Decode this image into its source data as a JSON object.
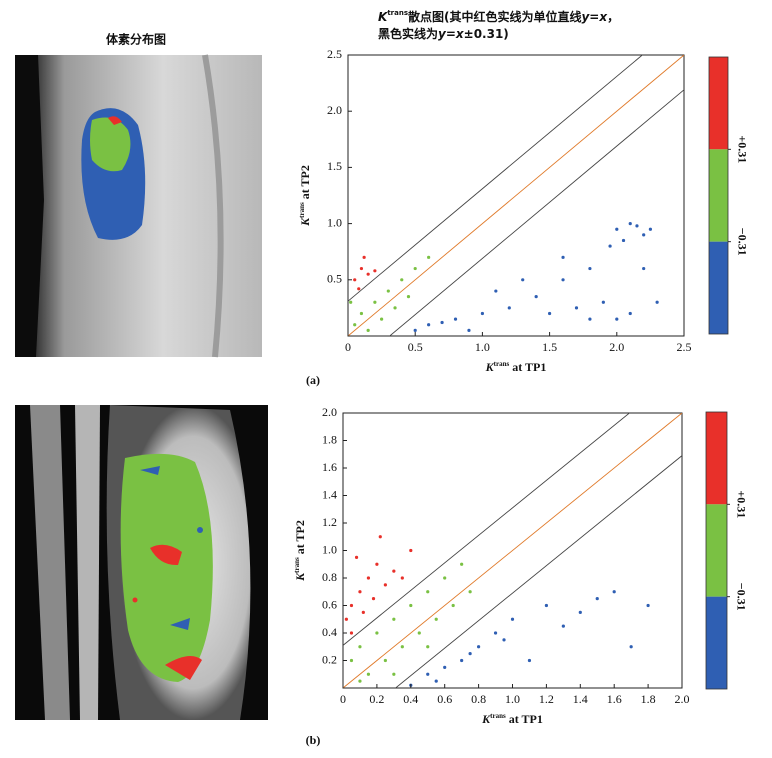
{
  "figure": {
    "left_title": "体素分布图",
    "right_title_lines": [
      [
        {
          "text": "K",
          "italic": true
        },
        {
          "text": "trans",
          "sup": true
        },
        {
          "text": "散点图(其中红色实线为单位直线"
        },
        {
          "text": "y=x",
          "italic": true
        },
        {
          "text": "，"
        }
      ],
      [
        {
          "text": "黑色实线为"
        },
        {
          "text": "y=x",
          "italic": true
        },
        {
          "text": "±0.31)"
        }
      ]
    ]
  },
  "chart_data": [
    {
      "type": "scatter",
      "panel_label": "(a)",
      "x_label": [
        {
          "text": "K",
          "italic": true
        },
        {
          "text": "trans",
          "sup": true
        },
        {
          "text": " at TP1"
        }
      ],
      "y_label": [
        {
          "text": "K",
          "italic": true
        },
        {
          "text": "trans",
          "sup": true
        },
        {
          "text": " at TP2"
        }
      ],
      "xlim": [
        0,
        2.5
      ],
      "ylim": [
        0,
        2.5
      ],
      "xticks": [
        0,
        0.5,
        {
          "value": 1,
          "label": "1.0"
        },
        1.5,
        {
          "value": 2,
          "label": "2.0"
        },
        2.5
      ],
      "yticks": [
        0.5,
        {
          "value": 1,
          "label": "1.0"
        },
        1.5,
        {
          "value": 2,
          "label": "2.0"
        },
        2.5
      ],
      "reference_lines": [
        {
          "intercept": 0,
          "color": "#e07a2a"
        },
        {
          "intercept": 0.31,
          "color": "#444444"
        },
        {
          "intercept": -0.31,
          "color": "#444444"
        }
      ],
      "series": [
        {
          "color": "#e8302a",
          "x": [
            0.05,
            0.1,
            0.15,
            0.08,
            0.2,
            0.12
          ],
          "y": [
            0.5,
            0.6,
            0.55,
            0.42,
            0.58,
            0.7
          ]
        },
        {
          "color": "#7ac143",
          "x": [
            0.05,
            0.1,
            0.2,
            0.3,
            0.4,
            0.5,
            0.6,
            0.15,
            0.25,
            0.35,
            0.02,
            0.45
          ],
          "y": [
            0.1,
            0.2,
            0.3,
            0.4,
            0.5,
            0.6,
            0.7,
            0.05,
            0.15,
            0.25,
            0.3,
            0.35
          ]
        },
        {
          "color": "#2f5fb3",
          "x": [
            2.0,
            2.1,
            2.2,
            2.05,
            2.15,
            1.95,
            2.25,
            1.8,
            1.6,
            1.4,
            1.2,
            1.0,
            0.8,
            0.6,
            1.5,
            1.7,
            1.9,
            2.1,
            2.3,
            1.3,
            1.1,
            0.9,
            1.6,
            1.8,
            2.0,
            2.2,
            0.5,
            0.7
          ],
          "y": [
            0.95,
            1.0,
            0.9,
            0.85,
            0.98,
            0.8,
            0.95,
            0.6,
            0.5,
            0.35,
            0.25,
            0.2,
            0.15,
            0.1,
            0.2,
            0.25,
            0.3,
            0.2,
            0.3,
            0.5,
            0.4,
            0.05,
            0.7,
            0.15,
            0.15,
            0.6,
            0.05,
            0.12
          ]
        }
      ],
      "colorbar": {
        "colors": [
          "#e8302a",
          "#7ac143",
          "#2f5fb3"
        ],
        "ticks": [
          {
            "value": 0.31,
            "label": "+0.31"
          },
          {
            "value": -0.31,
            "label": "−0.31"
          }
        ]
      }
    },
    {
      "type": "scatter",
      "panel_label": "(b)",
      "x_label": [
        {
          "text": "K",
          "italic": true
        },
        {
          "text": "trans",
          "sup": true
        },
        {
          "text": " at TP1"
        }
      ],
      "y_label": [
        {
          "text": "K",
          "italic": true
        },
        {
          "text": "trans",
          "sup": true
        },
        {
          "text": " at TP2"
        }
      ],
      "xlim": [
        0,
        2
      ],
      "ylim": [
        0,
        2
      ],
      "xticks": [
        0,
        0.2,
        0.4,
        0.6,
        0.8,
        {
          "value": 1,
          "label": "1.0"
        },
        1.2,
        1.4,
        1.6,
        1.8,
        {
          "value": 2,
          "label": "2.0"
        }
      ],
      "yticks": [
        0.2,
        0.4,
        0.6,
        0.8,
        {
          "value": 1,
          "label": "1.0"
        },
        1.2,
        1.4,
        1.6,
        1.8,
        {
          "value": 2,
          "label": "2.0"
        }
      ],
      "reference_lines": [
        {
          "intercept": 0,
          "color": "#e07a2a"
        },
        {
          "intercept": 0.31,
          "color": "#444444"
        },
        {
          "intercept": -0.31,
          "color": "#444444"
        }
      ],
      "series": [
        {
          "color": "#e8302a",
          "x": [
            0.02,
            0.05,
            0.1,
            0.15,
            0.2,
            0.25,
            0.3,
            0.08,
            0.12,
            0.18,
            0.35,
            0.4,
            0.05,
            0.22
          ],
          "y": [
            0.5,
            0.6,
            0.7,
            0.8,
            0.9,
            0.75,
            0.85,
            0.95,
            0.55,
            0.65,
            0.8,
            1.0,
            0.4,
            1.1
          ]
        },
        {
          "color": "#7ac143",
          "x": [
            0.05,
            0.1,
            0.2,
            0.3,
            0.4,
            0.5,
            0.6,
            0.7,
            0.15,
            0.25,
            0.35,
            0.45,
            0.55,
            0.65,
            0.75,
            0.1,
            0.3,
            0.5
          ],
          "y": [
            0.2,
            0.3,
            0.4,
            0.5,
            0.6,
            0.7,
            0.8,
            0.9,
            0.1,
            0.2,
            0.3,
            0.4,
            0.5,
            0.6,
            0.7,
            0.05,
            0.1,
            0.3
          ]
        },
        {
          "color": "#2f5fb3",
          "x": [
            0.4,
            0.5,
            0.6,
            0.7,
            0.8,
            0.9,
            1.0,
            1.2,
            1.4,
            1.6,
            1.8,
            0.55,
            0.75,
            0.95,
            1.1,
            1.3,
            1.7,
            1.5
          ],
          "y": [
            0.02,
            0.1,
            0.15,
            0.2,
            0.3,
            0.4,
            0.5,
            0.6,
            0.55,
            0.7,
            0.6,
            0.05,
            0.25,
            0.35,
            0.2,
            0.45,
            0.3,
            0.65
          ]
        }
      ],
      "colorbar": {
        "colors": [
          "#e8302a",
          "#7ac143",
          "#2f5fb3"
        ],
        "ticks": [
          {
            "value": 0.31,
            "label": "+0.31"
          },
          {
            "value": -0.31,
            "label": "−0.31"
          }
        ]
      }
    }
  ]
}
